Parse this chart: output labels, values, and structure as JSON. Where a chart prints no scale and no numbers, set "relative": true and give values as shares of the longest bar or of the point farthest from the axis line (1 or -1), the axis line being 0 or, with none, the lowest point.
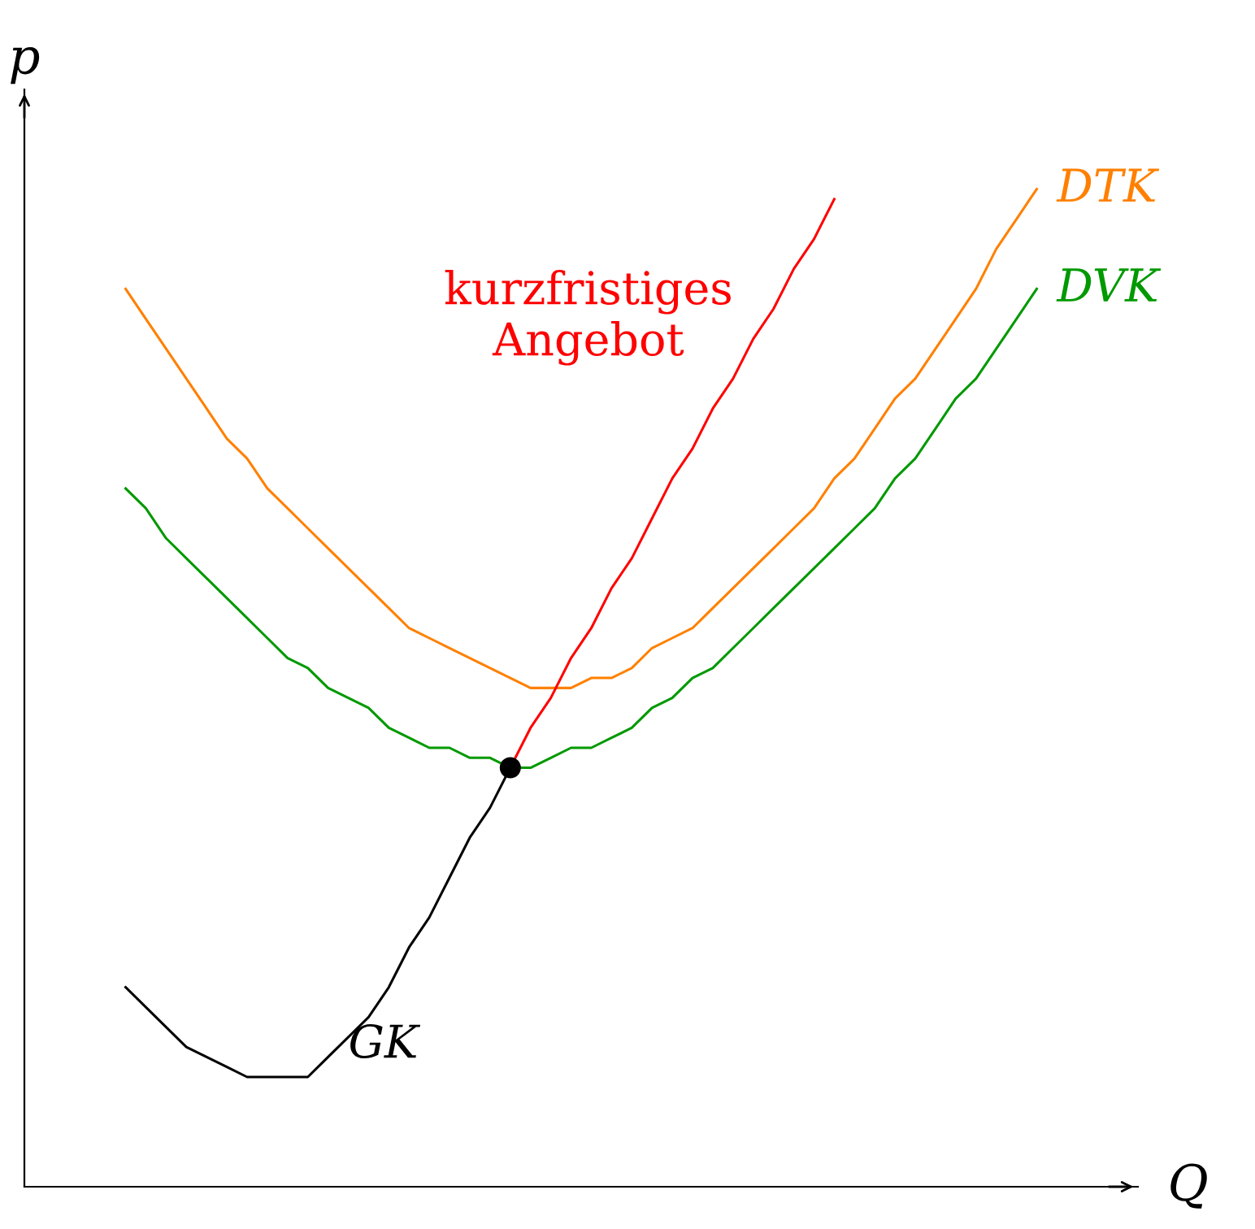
{
  "chart_data": {
    "type": "line",
    "relative": true,
    "xlabel": "Q",
    "ylabel": "p",
    "legend": false,
    "grid": false,
    "categories": [
      null,
      null,
      null,
      null,
      null,
      null,
      null,
      null,
      null,
      null,
      null,
      null,
      null,
      null,
      null,
      null,
      null,
      null,
      null,
      null,
      null,
      null,
      null,
      null,
      null,
      null,
      null,
      null,
      null,
      null,
      null,
      null,
      null,
      null,
      null,
      null,
      null,
      null,
      null,
      null,
      null,
      null,
      null,
      null,
      null,
      null
    ],
    "series": [
      {
        "name": "DTK",
        "color": "#ff8000",
        "values": [
          0.9,
          0.87,
          0.84,
          0.81,
          0.78,
          0.75,
          0.73,
          0.7,
          0.68,
          0.66,
          0.64,
          0.62,
          0.6,
          0.58,
          0.56,
          0.55,
          0.54,
          0.53,
          0.52,
          0.51,
          0.5,
          0.5,
          0.5,
          0.51,
          0.51,
          0.52,
          0.54,
          0.55,
          0.56,
          0.58,
          0.6,
          0.62,
          0.64,
          0.66,
          0.68,
          0.71,
          0.73,
          0.76,
          0.79,
          0.81,
          0.84,
          0.87,
          0.9,
          0.94,
          0.97,
          1.0
        ]
      },
      {
        "name": "DVK",
        "color": "#009900",
        "values": [
          0.7,
          0.68,
          0.65,
          0.63,
          0.61,
          0.59,
          0.57,
          0.55,
          0.53,
          0.52,
          0.5,
          0.49,
          0.48,
          0.46,
          0.45,
          0.44,
          0.44,
          0.43,
          0.43,
          0.42,
          0.42,
          0.43,
          0.44,
          0.44,
          0.45,
          0.46,
          0.48,
          0.49,
          0.51,
          0.52,
          0.54,
          0.56,
          0.58,
          0.6,
          0.62,
          0.64,
          0.66,
          0.68,
          0.71,
          0.73,
          0.76,
          0.79,
          0.81,
          0.84,
          0.87,
          0.9
        ]
      },
      {
        "name": "GK",
        "color": "#000000",
        "values": [
          0.2,
          0.18,
          0.16,
          0.14,
          0.13,
          0.12,
          0.11,
          0.11,
          0.11,
          0.11,
          0.13,
          0.15,
          0.17,
          0.2,
          0.24,
          0.27,
          0.31,
          0.35,
          0.38,
          0.42,
          null,
          null,
          null,
          null,
          null,
          null,
          null,
          null,
          null,
          null,
          null,
          null,
          null,
          null,
          null,
          null,
          null,
          null,
          null,
          null,
          null,
          null,
          null,
          null,
          null,
          null
        ]
      },
      {
        "name": "kurzfristiges\nAngebot",
        "color": "#ff0000",
        "values": [
          null,
          null,
          null,
          null,
          null,
          null,
          null,
          null,
          null,
          null,
          null,
          null,
          null,
          null,
          null,
          null,
          null,
          null,
          null,
          0.42,
          0.46,
          0.49,
          0.53,
          0.56,
          0.6,
          0.63,
          0.67,
          0.71,
          0.74,
          0.78,
          0.81,
          0.85,
          0.88,
          0.92,
          0.95,
          0.99,
          null,
          null,
          null,
          null,
          null,
          null,
          null,
          null,
          null,
          null
        ]
      }
    ]
  }
}
